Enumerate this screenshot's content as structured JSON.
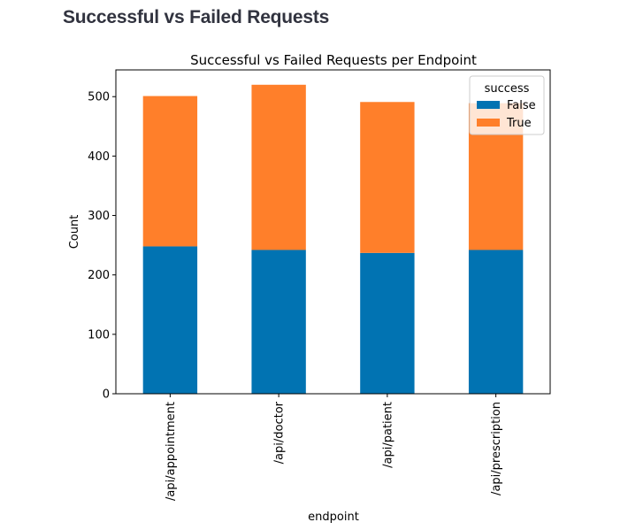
{
  "page": {
    "heading": "Successful vs Failed Requests"
  },
  "chart_data": {
    "type": "bar",
    "stacked": true,
    "title": "Successful vs Failed Requests per Endpoint",
    "xlabel": "endpoint",
    "ylabel": "Count",
    "categories": [
      "/api/appointment",
      "/api/doctor",
      "/api/patient",
      "/api/prescription"
    ],
    "series": [
      {
        "name": "False",
        "color": "#0173b2",
        "values": [
          248,
          242,
          237,
          242
        ]
      },
      {
        "name": "True",
        "color": "#ff7f2a",
        "values": [
          253,
          278,
          254,
          247
        ]
      }
    ],
    "ylim": [
      0,
      545
    ],
    "yticks": [
      0,
      100,
      200,
      300,
      400,
      500
    ],
    "legend": {
      "title": "success",
      "position": "top-right"
    },
    "grid": false
  }
}
